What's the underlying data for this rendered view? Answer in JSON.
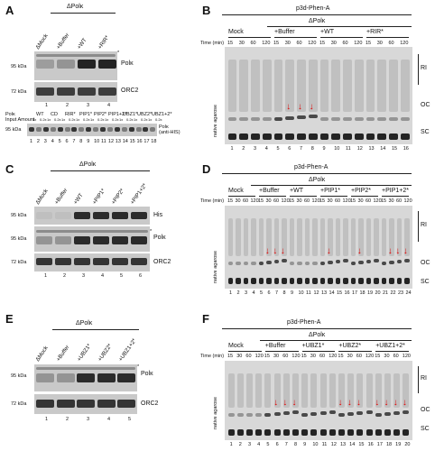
{
  "panels": {
    "A": {
      "label": "A",
      "header": "ΔPolκ",
      "lanes": [
        "ΔMock",
        "+Buffer",
        "+WT",
        "+RIR*"
      ],
      "bands": [
        {
          "kda": "95 kDa",
          "name": "Polκ"
        },
        {
          "kda": "72 kDa",
          "name": "ORC2"
        }
      ],
      "lane_numbers": [
        "1",
        "2",
        "3",
        "4"
      ],
      "sub": {
        "row1": [
          "WT",
          "CD",
          "RIR*",
          "PIP1*",
          "PIP2*",
          "PIP1+2*",
          "UBZ1*",
          "UBZ2*",
          "UBZ1+2*"
        ],
        "row1_prefix": "Polκ",
        "row2": [
          "1x",
          "0.2x",
          "1x",
          "0.2x",
          "1x",
          "0.2x",
          "1x",
          "0.2x",
          "1x",
          "0.2x",
          "1x",
          "0.2x",
          "1x",
          "0.2x",
          "1x",
          "0.2x",
          "1x",
          "0.2x"
        ],
        "row2_prefix": "Input Amount",
        "band_kda": "95 kDa",
        "band_name": "Polκ\n(anti-HIS)",
        "lane_numbers": [
          "1",
          "2",
          "3",
          "4",
          "5",
          "6",
          "7",
          "8",
          "9",
          "10",
          "11",
          "12",
          "13",
          "14",
          "15",
          "16",
          "17",
          "18"
        ]
      }
    },
    "B": {
      "label": "B",
      "title": "p3d-Phen-A",
      "delta": "ΔPolκ",
      "groups": [
        "Mock",
        "+Buffer",
        "+WT",
        "+RIR*"
      ],
      "time_label": "Time (min)",
      "times": [
        "15",
        "30",
        "60",
        "120",
        "15",
        "30",
        "60",
        "120",
        "15",
        "30",
        "60",
        "120",
        "15",
        "30",
        "60",
        "120"
      ],
      "side": [
        "RI",
        "OC",
        "SC"
      ],
      "gel_label": "native agarose",
      "lane_numbers": [
        "1",
        "2",
        "3",
        "4",
        "5",
        "6",
        "7",
        "8",
        "9",
        "10",
        "11",
        "12",
        "13",
        "14",
        "15",
        "16"
      ]
    },
    "C": {
      "label": "C",
      "header": "ΔPolκ",
      "lanes": [
        "ΔMock",
        "+Buffer",
        "+WT",
        "+PIP1*",
        "+PIP2*",
        "+PIP1+2*"
      ],
      "bands": [
        {
          "kda": "95 kDa",
          "name": "His"
        },
        {
          "kda": "95 kDa",
          "name": "Polκ"
        },
        {
          "kda": "72 kDa",
          "name": "ORC2"
        }
      ],
      "lane_numbers": [
        "1",
        "2",
        "3",
        "4",
        "5",
        "6"
      ]
    },
    "D": {
      "label": "D",
      "title": "p3d-Phen-A",
      "delta": "ΔPolκ",
      "groups": [
        "Mock",
        "+Buffer",
        "+WT",
        "+PIP1*",
        "+PIP2*",
        "+PIP1+2*"
      ],
      "time_label": "Time (min)",
      "times": [
        "15",
        "30",
        "60",
        "120",
        "15",
        "30",
        "60",
        "120",
        "15",
        "30",
        "60",
        "120",
        "15",
        "30",
        "60",
        "120",
        "15",
        "30",
        "60",
        "120",
        "15",
        "30",
        "60",
        "120"
      ],
      "side": [
        "RI",
        "OC",
        "SC"
      ],
      "gel_label": "native agarose",
      "lane_numbers": [
        "1",
        "2",
        "3",
        "4",
        "5",
        "6",
        "7",
        "8",
        "9",
        "10",
        "11",
        "12",
        "13",
        "14",
        "15",
        "16",
        "17",
        "18",
        "19",
        "20",
        "21",
        "22",
        "23",
        "24"
      ]
    },
    "E": {
      "label": "E",
      "header": "ΔPolκ",
      "lanes": [
        "ΔMock",
        "+Buffer",
        "+UBZ1*",
        "+UBZ2*",
        "+UBZ1+2*"
      ],
      "bands": [
        {
          "kda": "95 kDa",
          "name": "Polκ"
        },
        {
          "kda": "72 kDa",
          "name": "ORC2"
        }
      ],
      "lane_numbers": [
        "1",
        "2",
        "3",
        "4",
        "5"
      ]
    },
    "F": {
      "label": "F",
      "title": "p3d-Phen-A",
      "delta": "ΔPolκ",
      "groups": [
        "Mock",
        "+Buffer",
        "+UBZ1*",
        "+UBZ2*",
        "+UBZ1+2*"
      ],
      "time_label": "Time (min)",
      "times": [
        "15",
        "30",
        "60",
        "120",
        "15",
        "30",
        "60",
        "120",
        "15",
        "30",
        "60",
        "120",
        "15",
        "30",
        "60",
        "120",
        "15",
        "30",
        "60",
        "120"
      ],
      "side": [
        "RI",
        "OC",
        "SC"
      ],
      "gel_label": "native agarose",
      "lane_numbers": [
        "1",
        "2",
        "3",
        "4",
        "5",
        "6",
        "7",
        "8",
        "9",
        "10",
        "11",
        "12",
        "13",
        "14",
        "15",
        "16",
        "17",
        "18",
        "19",
        "20"
      ]
    }
  },
  "colors": {
    "arrow": "#e00000",
    "band": "#1a1a1a",
    "blot_bg": "#c9c9c9"
  }
}
